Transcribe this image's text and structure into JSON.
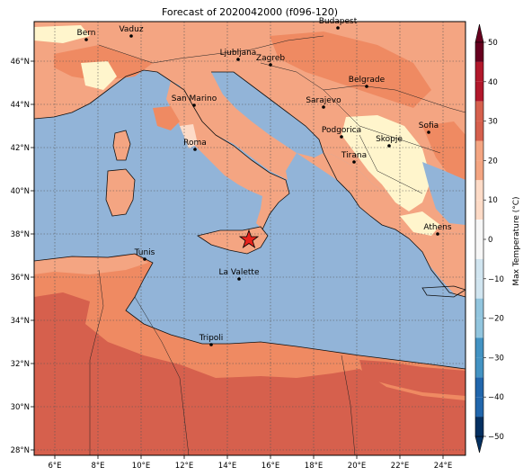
{
  "title": "Forecast of 2020042000 (f096-120)",
  "colorbar": {
    "label": "Max Temperature (°C)",
    "ticks": [
      "50",
      "40",
      "30",
      "20",
      "10",
      "0",
      "−10",
      "−20",
      "−30",
      "−40",
      "−50"
    ],
    "colors": [
      "#67001f",
      "#b2182b",
      "#d6604d",
      "#f4a582",
      "#fddbc7",
      "#f7f7f7",
      "#d1e5f0",
      "#92c5de",
      "#4393c3",
      "#2166ac",
      "#053061"
    ]
  },
  "lon_labels": [
    "6°E",
    "8°E",
    "10°E",
    "12°E",
    "14°E",
    "16°E",
    "18°E",
    "20°E",
    "22°E",
    "24°E"
  ],
  "lat_labels": [
    "46°N",
    "44°N",
    "42°N",
    "40°N",
    "38°N",
    "36°N",
    "34°N",
    "32°N",
    "30°N",
    "28°N"
  ],
  "cities": [
    {
      "name": "Bern"
    },
    {
      "name": "Vaduz"
    },
    {
      "name": "Budapest"
    },
    {
      "name": "Ljubljana"
    },
    {
      "name": "Zagreb"
    },
    {
      "name": "Belgrade"
    },
    {
      "name": "San Marino"
    },
    {
      "name": "Sarajevo"
    },
    {
      "name": "Sofia"
    },
    {
      "name": "Podgorica"
    },
    {
      "name": "Skopje"
    },
    {
      "name": "Roma"
    },
    {
      "name": "Tirana"
    },
    {
      "name": "Athens"
    },
    {
      "name": "Tunis"
    },
    {
      "name": "La Valette"
    },
    {
      "name": "Tripoli"
    }
  ],
  "colors": {
    "sea": "#92b4d8",
    "land_warm": "#f4a582",
    "land_hot": "#ef8a62",
    "land_very_hot": "#d6604d",
    "land_mild": "#fddbc7",
    "land_cool": "#fff5cc"
  },
  "marker": {
    "name": "star-marker"
  }
}
